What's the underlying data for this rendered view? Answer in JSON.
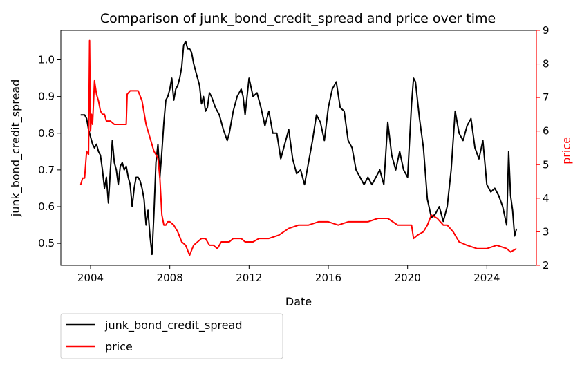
{
  "chart_data": {
    "type": "line",
    "title": "Comparison of junk_bond_credit_spread and price over time",
    "xlabel": "Date",
    "ylabel_left": "junk_bond_credit_spread",
    "ylabel_right": "price",
    "x_ticks": [
      "2004",
      "2008",
      "2012",
      "2016",
      "2020",
      "2024"
    ],
    "y_left_ticks": [
      "0.5",
      "0.6",
      "0.7",
      "0.8",
      "0.9",
      "1.0"
    ],
    "y_right_ticks": [
      "2",
      "3",
      "4",
      "5",
      "6",
      "7",
      "8",
      "9"
    ],
    "xlim": [
      2002.5,
      2026.5
    ],
    "ylim_left": [
      0.44,
      1.08
    ],
    "ylim_right": [
      2.0,
      9.0
    ],
    "legend_position": "below-left",
    "grid": false,
    "series": [
      {
        "name": "junk_bond_credit_spread",
        "axis": "left",
        "color": "#000000",
        "x": [
          2003.5,
          2003.7,
          2003.8,
          2003.9,
          2004.0,
          2004.1,
          2004.2,
          2004.3,
          2004.4,
          2004.5,
          2004.6,
          2004.7,
          2004.8,
          2004.9,
          2005.0,
          2005.1,
          2005.2,
          2005.3,
          2005.4,
          2005.5,
          2005.6,
          2005.7,
          2005.8,
          2005.9,
          2006.0,
          2006.1,
          2006.2,
          2006.3,
          2006.4,
          2006.5,
          2006.6,
          2006.7,
          2006.8,
          2006.9,
          2007.0,
          2007.1,
          2007.2,
          2007.3,
          2007.4,
          2007.5,
          2007.6,
          2007.7,
          2007.8,
          2007.9,
          2008.0,
          2008.1,
          2008.2,
          2008.3,
          2008.4,
          2008.5,
          2008.6,
          2008.7,
          2008.8,
          2008.9,
          2009.0,
          2009.1,
          2009.2,
          2009.3,
          2009.4,
          2009.5,
          2009.6,
          2009.7,
          2009.8,
          2009.9,
          2010.0,
          2010.1,
          2010.3,
          2010.5,
          2010.7,
          2010.9,
          2011.0,
          2011.2,
          2011.4,
          2011.6,
          2011.7,
          2011.8,
          2012.0,
          2012.2,
          2012.4,
          2012.6,
          2012.8,
          2013.0,
          2013.2,
          2013.4,
          2013.6,
          2013.8,
          2014.0,
          2014.2,
          2014.4,
          2014.6,
          2014.8,
          2015.0,
          2015.2,
          2015.4,
          2015.6,
          2015.8,
          2016.0,
          2016.2,
          2016.4,
          2016.6,
          2016.8,
          2017.0,
          2017.2,
          2017.4,
          2017.6,
          2017.8,
          2018.0,
          2018.2,
          2018.4,
          2018.6,
          2018.8,
          2019.0,
          2019.2,
          2019.4,
          2019.6,
          2019.8,
          2020.0,
          2020.2,
          2020.3,
          2020.4,
          2020.6,
          2020.8,
          2021.0,
          2021.2,
          2021.4,
          2021.6,
          2021.8,
          2022.0,
          2022.2,
          2022.4,
          2022.6,
          2022.8,
          2023.0,
          2023.2,
          2023.4,
          2023.6,
          2023.8,
          2024.0,
          2024.2,
          2024.4,
          2024.6,
          2024.8,
          2025.0,
          2025.1,
          2025.2,
          2025.3,
          2025.4,
          2025.5
        ],
        "y": [
          0.85,
          0.85,
          0.84,
          0.81,
          0.79,
          0.77,
          0.76,
          0.77,
          0.75,
          0.74,
          0.7,
          0.65,
          0.68,
          0.61,
          0.7,
          0.78,
          0.72,
          0.7,
          0.66,
          0.71,
          0.72,
          0.7,
          0.71,
          0.68,
          0.66,
          0.6,
          0.65,
          0.68,
          0.68,
          0.67,
          0.65,
          0.62,
          0.55,
          0.59,
          0.52,
          0.47,
          0.58,
          0.72,
          0.77,
          0.68,
          0.75,
          0.83,
          0.89,
          0.9,
          0.92,
          0.95,
          0.89,
          0.92,
          0.93,
          0.95,
          0.98,
          1.04,
          1.05,
          1.03,
          1.03,
          1.02,
          0.99,
          0.97,
          0.95,
          0.93,
          0.88,
          0.9,
          0.86,
          0.87,
          0.91,
          0.9,
          0.87,
          0.85,
          0.81,
          0.78,
          0.8,
          0.86,
          0.9,
          0.92,
          0.9,
          0.85,
          0.95,
          0.9,
          0.91,
          0.87,
          0.82,
          0.86,
          0.8,
          0.8,
          0.73,
          0.77,
          0.81,
          0.73,
          0.69,
          0.7,
          0.66,
          0.72,
          0.78,
          0.85,
          0.83,
          0.78,
          0.87,
          0.92,
          0.94,
          0.87,
          0.86,
          0.78,
          0.76,
          0.7,
          0.68,
          0.66,
          0.68,
          0.66,
          0.68,
          0.7,
          0.66,
          0.83,
          0.74,
          0.7,
          0.75,
          0.7,
          0.68,
          0.88,
          0.95,
          0.94,
          0.84,
          0.76,
          0.62,
          0.57,
          0.58,
          0.6,
          0.56,
          0.6,
          0.7,
          0.86,
          0.8,
          0.78,
          0.82,
          0.84,
          0.76,
          0.73,
          0.78,
          0.66,
          0.64,
          0.65,
          0.63,
          0.6,
          0.55,
          0.75,
          0.63,
          0.59,
          0.52,
          0.54
        ]
      },
      {
        "name": "price",
        "axis": "right",
        "color": "#ff0000",
        "x": [
          2003.5,
          2003.6,
          2003.7,
          2003.8,
          2003.9,
          2003.95,
          2004.0,
          2004.05,
          2004.1,
          2004.2,
          2004.3,
          2004.4,
          2004.5,
          2004.6,
          2004.7,
          2004.8,
          2004.9,
          2005.0,
          2005.2,
          2005.4,
          2005.6,
          2005.8,
          2005.85,
          2006.0,
          2006.2,
          2006.4,
          2006.6,
          2006.8,
          2007.0,
          2007.2,
          2007.4,
          2007.5,
          2007.6,
          2007.7,
          2007.8,
          2007.9,
          2008.0,
          2008.2,
          2008.4,
          2008.6,
          2008.8,
          2009.0,
          2009.2,
          2009.4,
          2009.6,
          2009.8,
          2010.0,
          2010.2,
          2010.4,
          2010.6,
          2010.8,
          2011.0,
          2011.2,
          2011.4,
          2011.6,
          2011.8,
          2012.0,
          2012.2,
          2012.5,
          2013.0,
          2013.5,
          2014.0,
          2014.5,
          2015.0,
          2015.5,
          2016.0,
          2016.5,
          2017.0,
          2017.5,
          2018.0,
          2018.5,
          2019.0,
          2019.5,
          2020.0,
          2020.2,
          2020.3,
          2020.5,
          2020.8,
          2021.0,
          2021.2,
          2021.5,
          2021.8,
          2022.0,
          2022.3,
          2022.6,
          2023.0,
          2023.5,
          2024.0,
          2024.5,
          2025.0,
          2025.2,
          2025.5
        ],
        "y": [
          4.4,
          4.6,
          4.6,
          5.4,
          5.3,
          8.7,
          6.0,
          6.5,
          6.2,
          7.5,
          7.1,
          6.9,
          6.6,
          6.5,
          6.5,
          6.3,
          6.3,
          6.3,
          6.2,
          6.2,
          6.2,
          6.2,
          7.1,
          7.2,
          7.2,
          7.2,
          6.9,
          6.2,
          5.8,
          5.4,
          5.2,
          4.6,
          3.5,
          3.2,
          3.2,
          3.3,
          3.3,
          3.2,
          3.0,
          2.7,
          2.6,
          2.3,
          2.6,
          2.7,
          2.8,
          2.8,
          2.6,
          2.6,
          2.5,
          2.7,
          2.7,
          2.7,
          2.8,
          2.8,
          2.8,
          2.7,
          2.7,
          2.7,
          2.8,
          2.8,
          2.9,
          3.1,
          3.2,
          3.2,
          3.3,
          3.3,
          3.2,
          3.3,
          3.3,
          3.3,
          3.4,
          3.4,
          3.2,
          3.2,
          3.2,
          2.8,
          2.9,
          3.0,
          3.2,
          3.5,
          3.4,
          3.2,
          3.2,
          3.0,
          2.7,
          2.6,
          2.5,
          2.5,
          2.6,
          2.5,
          2.4,
          2.5
        ]
      }
    ]
  }
}
